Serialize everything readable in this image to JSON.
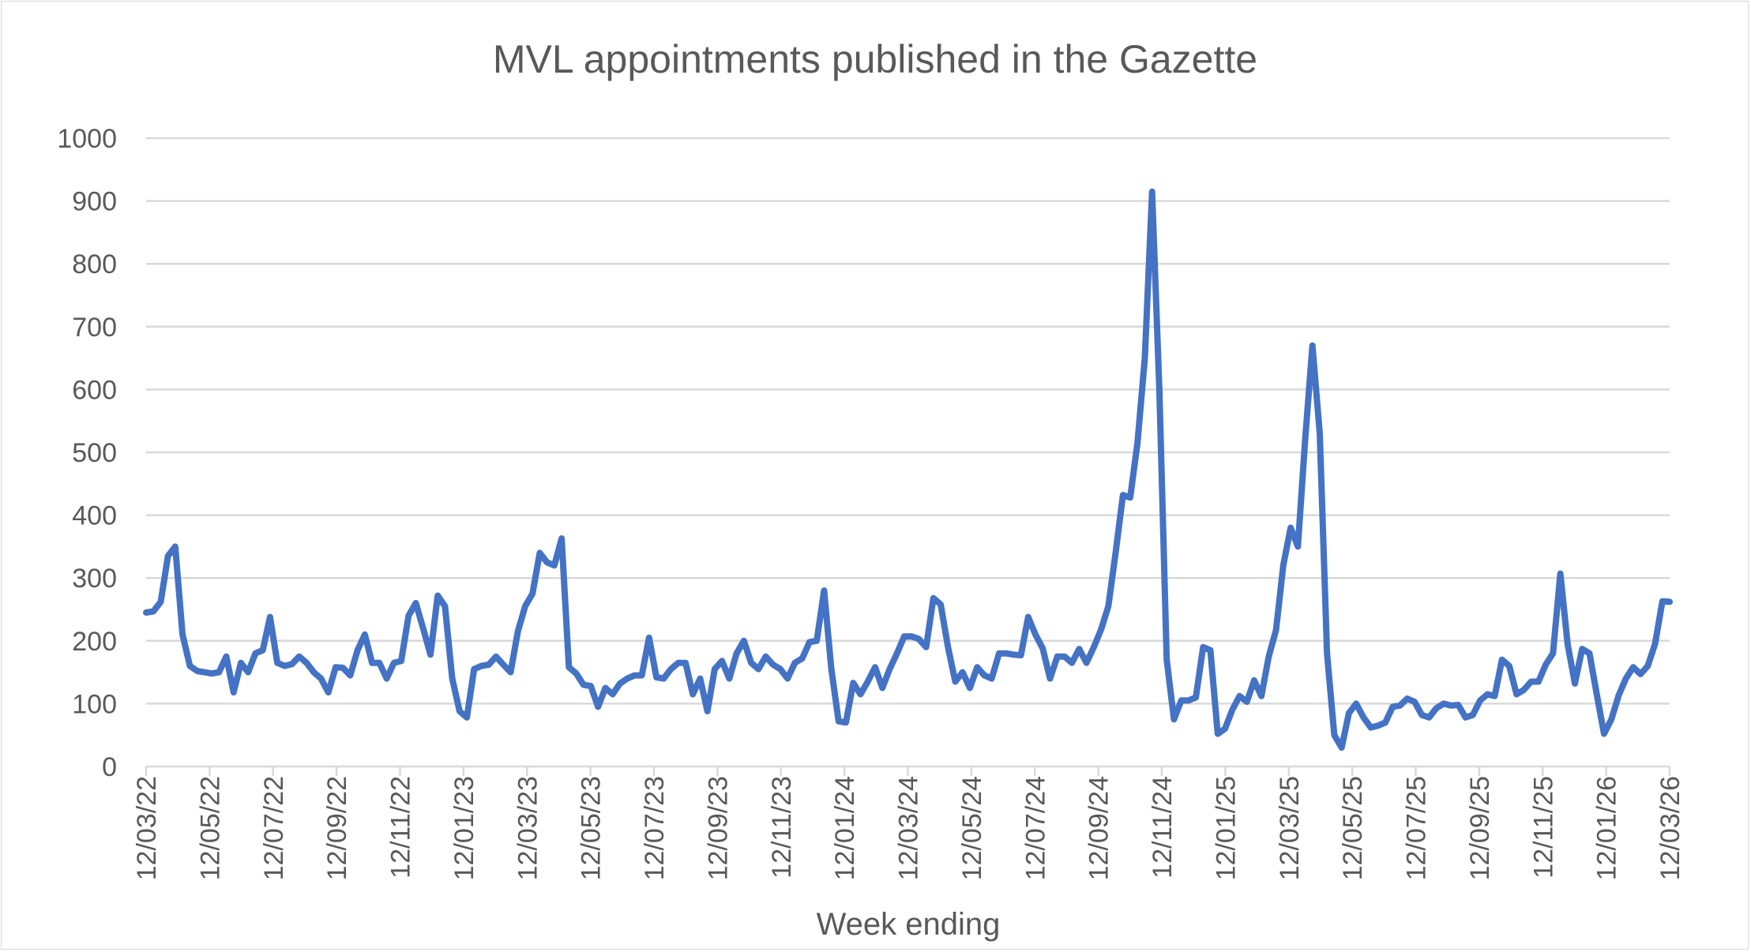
{
  "chart_data": {
    "type": "line",
    "title": "MVL appointments published in the Gazette",
    "xlabel": "Week ending",
    "ylabel": "",
    "ylim": [
      0,
      1000
    ],
    "yticks": [
      "0",
      "100",
      "200",
      "300",
      "400",
      "500",
      "600",
      "700",
      "800",
      "900",
      "1000"
    ],
    "xticks": [
      "12/03/22",
      "12/05/22",
      "12/07/22",
      "12/09/22",
      "12/11/22",
      "12/01/23",
      "12/03/23",
      "12/05/23",
      "12/07/23",
      "12/09/23",
      "12/11/23",
      "12/01/24",
      "12/03/24",
      "12/05/24",
      "12/07/24",
      "12/09/24",
      "12/11/24",
      "12/01/25",
      "12/03/25",
      "12/05/25",
      "12/07/25",
      "12/09/25",
      "12/11/25",
      "12/01/26",
      "12/03/26"
    ],
    "grid": true,
    "legend": "none",
    "series": [
      {
        "name": "MVL appointments",
        "color": "#4472c4",
        "values": [
          245,
          247,
          262,
          335,
          350,
          210,
          160,
          152,
          150,
          148,
          150,
          175,
          118,
          165,
          150,
          180,
          185,
          238,
          165,
          160,
          163,
          175,
          165,
          150,
          140,
          118,
          158,
          157,
          145,
          185,
          210,
          165,
          165,
          140,
          165,
          168,
          240,
          260,
          220,
          178,
          272,
          255,
          140,
          88,
          78,
          155,
          160,
          162,
          175,
          162,
          150,
          215,
          255,
          275,
          340,
          325,
          320,
          363,
          158,
          148,
          130,
          128,
          95,
          125,
          115,
          132,
          140,
          145,
          145,
          205,
          142,
          140,
          155,
          165,
          165,
          115,
          140,
          88,
          155,
          168,
          140,
          180,
          200,
          165,
          155,
          175,
          162,
          155,
          140,
          165,
          172,
          198,
          200,
          280,
          155,
          72,
          70,
          133,
          115,
          135,
          158,
          125,
          155,
          180,
          207,
          207,
          203,
          190,
          268,
          258,
          190,
          135,
          150,
          125,
          158,
          145,
          140,
          180,
          180,
          178,
          177,
          238,
          210,
          188,
          140,
          175,
          175,
          165,
          187,
          165,
          190,
          218,
          255,
          340,
          432,
          428,
          515,
          650,
          915,
          600,
          170,
          75,
          105,
          105,
          110,
          190,
          185,
          52,
          60,
          90,
          112,
          103,
          137,
          112,
          175,
          217,
          320,
          380,
          350,
          520,
          670,
          530,
          180,
          50,
          30,
          85,
          100,
          78,
          62,
          65,
          70,
          95,
          97,
          108,
          103,
          82,
          78,
          93,
          100,
          97,
          98,
          78,
          82,
          105,
          115,
          112,
          170,
          160,
          115,
          122,
          135,
          135,
          162,
          180,
          307,
          195,
          132,
          187,
          180,
          115,
          52,
          75,
          113,
          140,
          158,
          147,
          160,
          195,
          263,
          262
        ]
      }
    ]
  }
}
